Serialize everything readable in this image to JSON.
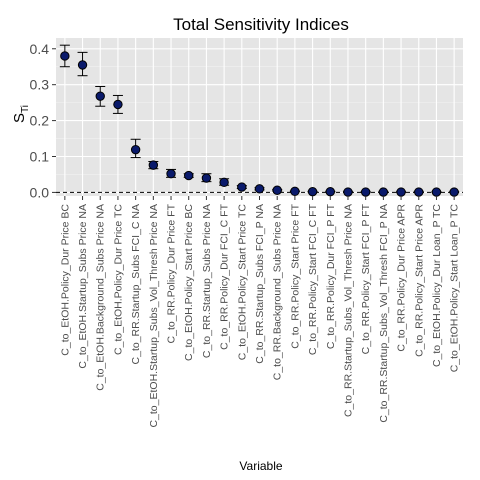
{
  "chart_data": {
    "type": "scatter",
    "title": "Total Sensitivity Indices",
    "xlabel": "Variable",
    "ylabel": "S",
    "ylabel_sub": "Ti",
    "ylim": [
      -0.01,
      0.43
    ],
    "yticks": [
      0.0,
      0.1,
      0.2,
      0.3,
      0.4
    ],
    "ytick_labels": [
      "0.0",
      "0.1",
      "0.2",
      "0.3",
      "0.4"
    ],
    "grid": true,
    "reference_line": 0,
    "categories": [
      "C_to_EtOH.Policy_Dur Price BC",
      "C_to_EtOH.Startup_Subs Price NA",
      "C_to_EtOH.Background_Subs Price NA",
      "C_to_EtOH.Policy_Dur Price TC",
      "C_to_RR.Startup_Subs FCI_C NA",
      "C_to_EtOH.Startup_Subs_Vol_Thresh Price NA",
      "C_to_RR.Policy_Dur Price FT",
      "C_to_EtOH.Policy_Start Price BC",
      "C_to_RR.Startup_Subs Price NA",
      "C_to_RR.Policy_Dur FCI_C FT",
      "C_to_EtOH.Policy_Start Price TC",
      "C_to_RR.Startup_Subs FCI_P NA",
      "C_to_RR.Background_Subs Price NA",
      "C_to_RR.Policy_Start Price FT",
      "C_to_RR.Policy_Start FCI_C FT",
      "C_to_RR.Policy_Dur FCI_P FT",
      "C_to_RR.Startup_Subs_Vol_Thresh Price NA",
      "C_to_RR.Policy_Start FCI_P FT",
      "C_to_RR.Startup_Subs_Vol_Thresh FCI_P NA",
      "C_to_RR.Policy_Dur Price APR",
      "C_to_RR.Policy_Start Price APR",
      "C_to_EtOH.Policy_Dur Loan_P TC",
      "C_to_EtOH.Policy_Start Loan_P TC"
    ],
    "values": [
      0.38,
      0.355,
      0.268,
      0.245,
      0.119,
      0.076,
      0.052,
      0.047,
      0.04,
      0.028,
      0.015,
      0.01,
      0.006,
      0.003,
      0.002,
      0.002,
      0.001,
      0.001,
      0.001,
      0.001,
      0.001,
      0.001,
      0.001
    ],
    "lower": [
      0.35,
      0.325,
      0.24,
      0.22,
      0.097,
      0.066,
      0.042,
      0.042,
      0.03,
      0.02,
      0.011,
      0.007,
      0.004,
      0.002,
      0.001,
      0.001,
      0.0,
      0.0,
      0.0,
      0.0,
      0.0,
      0.0,
      0.0
    ],
    "upper": [
      0.41,
      0.39,
      0.295,
      0.27,
      0.148,
      0.086,
      0.064,
      0.052,
      0.052,
      0.038,
      0.019,
      0.013,
      0.008,
      0.004,
      0.003,
      0.003,
      0.002,
      0.002,
      0.002,
      0.002,
      0.002,
      0.002,
      0.002
    ],
    "colors": {
      "panel": "#e5e5e5",
      "grid_major": "#ffffff",
      "grid_minor": "#f2f2f2",
      "point_fill": "#0a1a6b",
      "point_stroke": "#000000",
      "errorbar": "#000000",
      "text": "#000000",
      "tick_text": "#4d4d4d"
    }
  }
}
